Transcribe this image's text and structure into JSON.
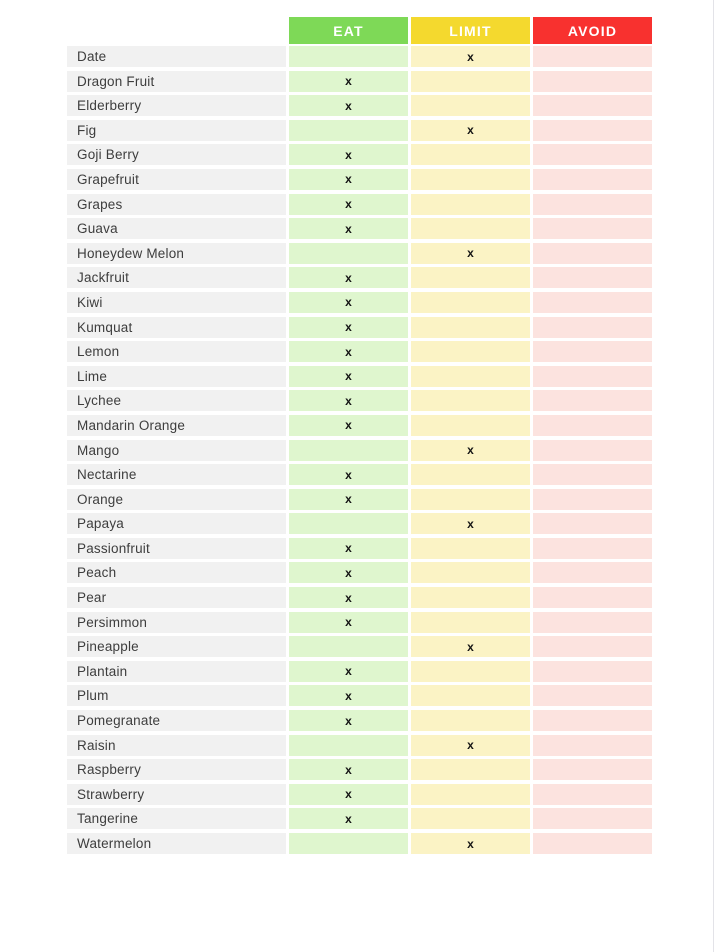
{
  "table": {
    "mark": "x",
    "name_column": {
      "cell_color": "#F1F1F1",
      "text_color": "#3D3D3D"
    },
    "columns": [
      {
        "id": "eat",
        "label": "EAT",
        "header_color": "#7ED957",
        "cell_color": "#DFF6CE"
      },
      {
        "id": "limit",
        "label": "LIMIT",
        "header_color": "#F4D92E",
        "cell_color": "#FBF3C5"
      },
      {
        "id": "avoid",
        "label": "AVOID",
        "header_color": "#F8312F",
        "cell_color": "#FCE3DF"
      }
    ],
    "rows": [
      {
        "name": "Date",
        "status": "limit"
      },
      {
        "name": "Dragon Fruit",
        "status": "eat"
      },
      {
        "name": "Elderberry",
        "status": "eat"
      },
      {
        "name": "Fig",
        "status": "limit"
      },
      {
        "name": "Goji Berry",
        "status": "eat"
      },
      {
        "name": "Grapefruit",
        "status": "eat"
      },
      {
        "name": "Grapes",
        "status": "eat"
      },
      {
        "name": "Guava",
        "status": "eat"
      },
      {
        "name": "Honeydew Melon",
        "status": "limit"
      },
      {
        "name": "Jackfruit",
        "status": "eat"
      },
      {
        "name": "Kiwi",
        "status": "eat"
      },
      {
        "name": "Kumquat",
        "status": "eat"
      },
      {
        "name": "Lemon",
        "status": "eat"
      },
      {
        "name": "Lime",
        "status": "eat"
      },
      {
        "name": "Lychee",
        "status": "eat"
      },
      {
        "name": "Mandarin Orange",
        "status": "eat"
      },
      {
        "name": "Mango",
        "status": "limit"
      },
      {
        "name": "Nectarine",
        "status": "eat"
      },
      {
        "name": "Orange",
        "status": "eat"
      },
      {
        "name": "Papaya",
        "status": "limit"
      },
      {
        "name": "Passionfruit",
        "status": "eat"
      },
      {
        "name": "Peach",
        "status": "eat"
      },
      {
        "name": "Pear",
        "status": "eat"
      },
      {
        "name": "Persimmon",
        "status": "eat"
      },
      {
        "name": "Pineapple",
        "status": "limit"
      },
      {
        "name": "Plantain",
        "status": "eat"
      },
      {
        "name": "Plum",
        "status": "eat"
      },
      {
        "name": "Pomegranate",
        "status": "eat"
      },
      {
        "name": "Raisin",
        "status": "limit"
      },
      {
        "name": "Raspberry",
        "status": "eat"
      },
      {
        "name": "Strawberry",
        "status": "eat"
      },
      {
        "name": "Tangerine",
        "status": "eat"
      },
      {
        "name": "Watermelon",
        "status": "limit"
      }
    ]
  }
}
